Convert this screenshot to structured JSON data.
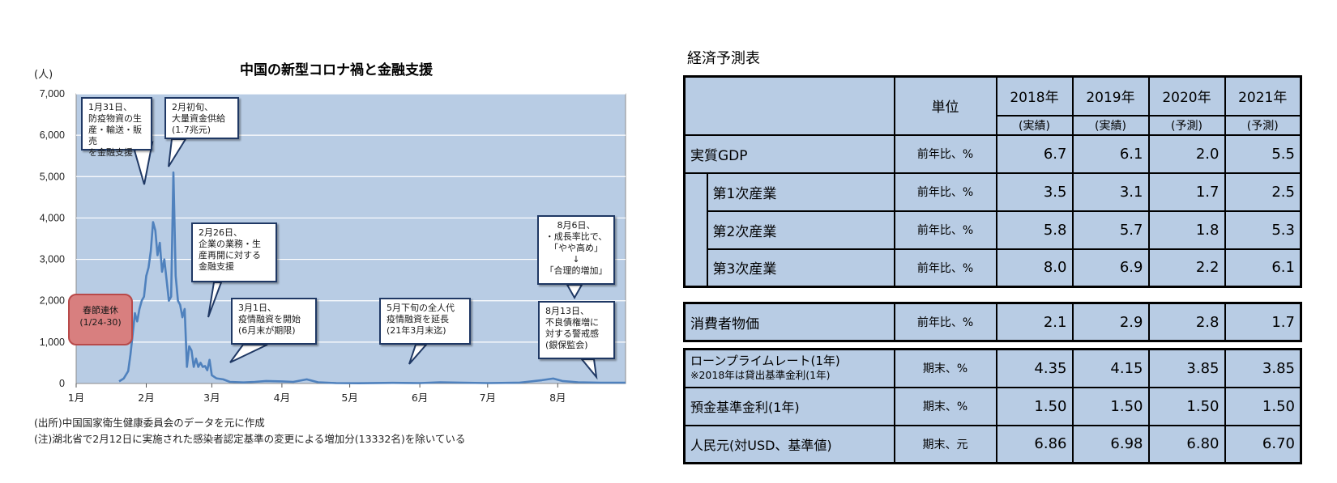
{
  "chart_data": {
    "type": "line",
    "title": "中国の新型コロナ禍と金融支援",
    "ylabel": "(人)",
    "ylim": [
      0,
      7000
    ],
    "y_ticks": [
      "0",
      "1,000",
      "2,000",
      "3,000",
      "4,000",
      "5,000",
      "6,000",
      "7,000"
    ],
    "x_ticks": [
      "1月",
      "2月",
      "3月",
      "4月",
      "5月",
      "6月",
      "7月",
      "8月"
    ],
    "grid": true,
    "series": [
      {
        "values": [
          [
            "2020-01-20",
            50
          ],
          [
            "2020-01-22",
            120
          ],
          [
            "2020-01-24",
            300
          ],
          [
            "2020-01-25",
            700
          ],
          [
            "2020-01-26",
            1200
          ],
          [
            "2020-01-27",
            1700
          ],
          [
            "2020-01-28",
            1500
          ],
          [
            "2020-01-29",
            1800
          ],
          [
            "2020-01-30",
            2000
          ],
          [
            "2020-01-31",
            2100
          ],
          [
            "2020-02-01",
            2600
          ],
          [
            "2020-02-02",
            2800
          ],
          [
            "2020-02-03",
            3200
          ],
          [
            "2020-02-04",
            3900
          ],
          [
            "2020-02-05",
            3700
          ],
          [
            "2020-02-06",
            3100
          ],
          [
            "2020-02-07",
            3400
          ],
          [
            "2020-02-08",
            2700
          ],
          [
            "2020-02-09",
            3000
          ],
          [
            "2020-02-10",
            2500
          ],
          [
            "2020-02-11",
            2000
          ],
          [
            "2020-02-12",
            2100
          ],
          [
            "2020-02-13",
            5100
          ],
          [
            "2020-02-14",
            2600
          ],
          [
            "2020-02-15",
            2000
          ],
          [
            "2020-02-16",
            1900
          ],
          [
            "2020-02-17",
            1600
          ],
          [
            "2020-02-18",
            1800
          ],
          [
            "2020-02-19",
            400
          ],
          [
            "2020-02-20",
            900
          ],
          [
            "2020-02-21",
            800
          ],
          [
            "2020-02-22",
            400
          ],
          [
            "2020-02-23",
            600
          ],
          [
            "2020-02-24",
            400
          ],
          [
            "2020-02-25",
            500
          ],
          [
            "2020-02-26",
            400
          ],
          [
            "2020-02-27",
            420
          ],
          [
            "2020-02-28",
            320
          ],
          [
            "2020-02-29",
            570
          ],
          [
            "2020-03-01",
            200
          ],
          [
            "2020-03-03",
            125
          ],
          [
            "2020-03-06",
            100
          ],
          [
            "2020-03-09",
            40
          ],
          [
            "2020-03-15",
            25
          ],
          [
            "2020-03-20",
            40
          ],
          [
            "2020-03-25",
            60
          ],
          [
            "2020-04-01",
            50
          ],
          [
            "2020-04-06",
            40
          ],
          [
            "2020-04-12",
            100
          ],
          [
            "2020-04-17",
            30
          ],
          [
            "2020-04-25",
            10
          ],
          [
            "2020-05-05",
            5
          ],
          [
            "2020-05-20",
            15
          ],
          [
            "2020-06-01",
            10
          ],
          [
            "2020-06-10",
            30
          ],
          [
            "2020-06-20",
            20
          ],
          [
            "2020-07-01",
            10
          ],
          [
            "2020-07-15",
            20
          ],
          [
            "2020-07-25",
            80
          ],
          [
            "2020-07-30",
            120
          ],
          [
            "2020-08-03",
            60
          ],
          [
            "2020-08-10",
            30
          ],
          [
            "2020-08-20",
            20
          ],
          [
            "2020-08-31",
            20
          ]
        ]
      }
    ],
    "annotations": [
      {
        "text": "1月31日、\n防疫物資の生\n産・輸送・販売\nを金融支援"
      },
      {
        "text": "2月初旬、\n大量資金供給\n(1.7兆元)"
      },
      {
        "text": "2月26日、\n企業の業務・生\n産再開に対する\n金融支援"
      },
      {
        "text": "3月1日、\n疫情融資を開始\n(6月末が期限)"
      },
      {
        "text": "5月下旬の全人代\n疫情融資を延長\n(21年3月末迄)"
      },
      {
        "text": "8月6日、\n・成長率比で、\n「やや高め」\n↓\n「合理的増加」"
      },
      {
        "text": "8月13日、\n不良債権増に\n対する警戒感\n(銀保監会)"
      },
      {
        "text": "春節連休\n(1/24-30)"
      }
    ],
    "notes": [
      "(出所)中国国家衛生健康委員会のデータを元に作成",
      "(注)湖北省で2月12日に実施された感染者認定基準の変更による増加分(13332名)を除いている"
    ],
    "colors": {
      "plot_bg": "#b8cce4",
      "line": "#4f81bd",
      "grid": "#ffffff"
    }
  },
  "table": {
    "title": "経済予測表",
    "unit_header": "単位",
    "years": [
      "2018年",
      "2019年",
      "2020年",
      "2021年"
    ],
    "statuses": [
      "(実績)",
      "(実績)",
      "(予測)",
      "(予測)"
    ],
    "gdp": {
      "label": "実質GDP",
      "unit": "前年比、%",
      "values": [
        "6.7",
        "6.1",
        "2.0",
        "5.5"
      ]
    },
    "sectors": [
      {
        "label": "第1次産業",
        "unit": "前年比、%",
        "values": [
          "3.5",
          "3.1",
          "1.7",
          "2.5"
        ]
      },
      {
        "label": "第2次産業",
        "unit": "前年比、%",
        "values": [
          "5.8",
          "5.7",
          "1.8",
          "5.3"
        ]
      },
      {
        "label": "第3次産業",
        "unit": "前年比、%",
        "values": [
          "8.0",
          "6.9",
          "2.2",
          "6.1"
        ]
      }
    ],
    "cpi": {
      "label": "消費者物価",
      "unit": "前年比、%",
      "values": [
        "2.1",
        "2.9",
        "2.8",
        "1.7"
      ]
    },
    "finance": [
      {
        "label": "ローンプライムレート(1年)",
        "sublabel": "※2018年は貸出基準金利(1年)",
        "unit": "期末、%",
        "values": [
          "4.35",
          "4.15",
          "3.85",
          "3.85"
        ]
      },
      {
        "label": "預金基準金利(1年)",
        "unit": "期末、%",
        "values": [
          "1.50",
          "1.50",
          "1.50",
          "1.50"
        ]
      },
      {
        "label": "人民元(対USD、基準値)",
        "unit": "期末、元",
        "values": [
          "6.86",
          "6.98",
          "6.80",
          "6.70"
        ]
      }
    ],
    "colors": {
      "cell_bg": "#b8cce4"
    }
  }
}
